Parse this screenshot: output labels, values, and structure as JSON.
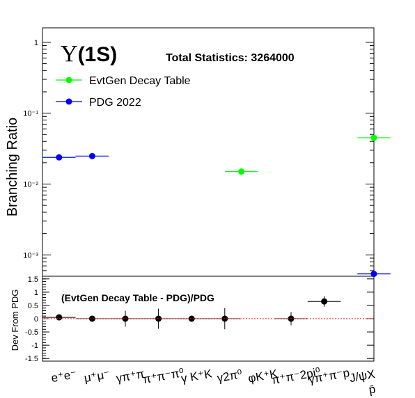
{
  "chart_data": [
    {
      "type": "scatter",
      "title": "Υ(1S)",
      "statistics_label": "Total Statistics: 3264000",
      "ylabel": "Branching Ratio",
      "yscale": "log",
      "ylim": [
        0.0005,
        1.6
      ],
      "yticks": [
        "1",
        "10⁻¹",
        "10⁻²",
        "10⁻³"
      ],
      "categories": [
        "e⁺e⁻",
        "μ⁺μ⁻",
        "γπ⁺π",
        "π⁺π⁻π⁰",
        "γ K⁺K",
        "γ2π⁰",
        "φK⁺K",
        "π⁺π⁻2pi⁰",
        "γπ⁺π⁻p",
        "J/ψX",
        "p̄"
      ],
      "legend_position": "top-left",
      "series": [
        {
          "name": "EvtGen Decay Table",
          "color": "#00ff00",
          "points": [
            {
              "x": 0,
              "y": 0.0238
            },
            {
              "x": 5.5,
              "y": 0.015
            },
            {
              "x": 9.5,
              "y": 0.045
            }
          ]
        },
        {
          "name": "PDG 2022",
          "color": "#0000ff",
          "points": [
            {
              "x": 0,
              "y": 0.0238
            },
            {
              "x": 1,
              "y": 0.0248
            },
            {
              "x": 9.5,
              "y": 0.00054
            }
          ]
        }
      ]
    },
    {
      "type": "scatter",
      "annotation": "(EvtGen Decay Table - PDG)/PDG",
      "ylabel": "Dev From PDG",
      "ylim": [
        -1.6,
        1.6
      ],
      "yticks": [
        "1.5",
        "1",
        "0.5",
        "0",
        "-0.5",
        "-1",
        "-1.5"
      ],
      "reference_line": 0,
      "points": [
        {
          "x": 0,
          "y": 0.05,
          "err": 0.03
        },
        {
          "x": 1,
          "y": 0.0,
          "err": 0.0
        },
        {
          "x": 2,
          "y": 0.0,
          "err": 0.3
        },
        {
          "x": 3,
          "y": 0.0,
          "err": 0.38
        },
        {
          "x": 4,
          "y": 0.0,
          "err": 0.0
        },
        {
          "x": 5,
          "y": 0.0,
          "err": 0.4
        },
        {
          "x": 7,
          "y": 0.0,
          "err": 0.25
        },
        {
          "x": 8,
          "y": 0.65,
          "err": 0.2
        }
      ]
    }
  ]
}
